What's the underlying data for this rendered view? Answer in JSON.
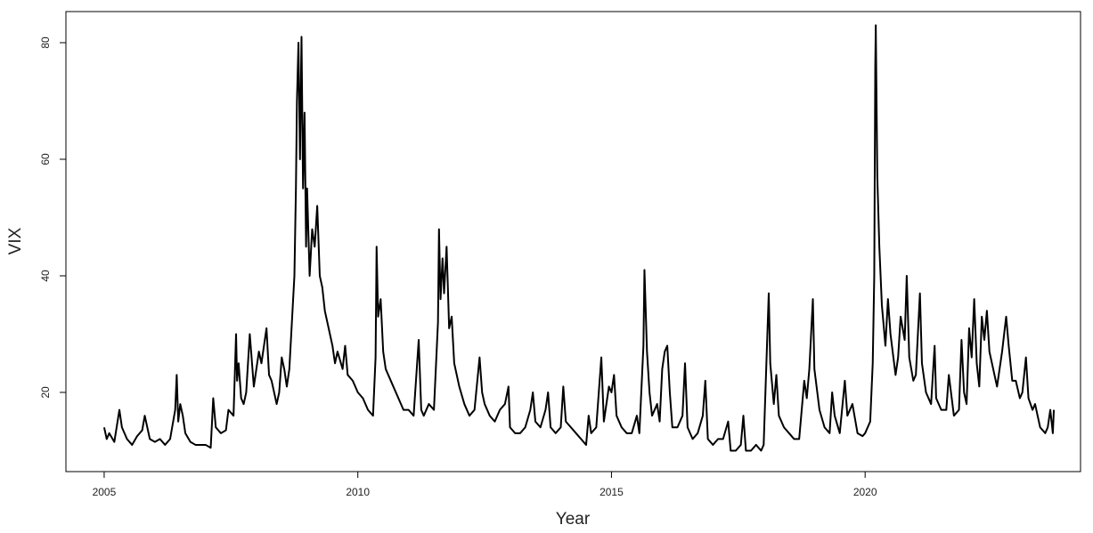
{
  "chart_data": {
    "type": "line",
    "x_label": "Year",
    "y_label": "VIX",
    "color": "#000000",
    "xlim": [
      2004.246,
      2024.246
    ],
    "xticks": [
      2005,
      2010,
      2015,
      2020
    ],
    "ylim": [
      6.41,
      85.34
    ],
    "yticks": [
      20,
      40,
      60,
      80
    ],
    "grid": false,
    "x": [
      2005.0,
      2005.05,
      2005.1,
      2005.2,
      2005.3,
      2005.35,
      2005.45,
      2005.55,
      2005.65,
      2005.75,
      2005.8,
      2005.9,
      2006.0,
      2006.1,
      2006.2,
      2006.3,
      2006.4,
      2006.43,
      2006.46,
      2006.5,
      2006.55,
      2006.6,
      2006.7,
      2006.8,
      2006.9,
      2007.0,
      2007.1,
      2007.15,
      2007.2,
      2007.3,
      2007.4,
      2007.45,
      2007.55,
      2007.6,
      2007.62,
      2007.65,
      2007.7,
      2007.75,
      2007.8,
      2007.87,
      2007.95,
      2008.0,
      2008.05,
      2008.1,
      2008.2,
      2008.25,
      2008.3,
      2008.4,
      2008.45,
      2008.5,
      2008.55,
      2008.6,
      2008.65,
      2008.7,
      2008.75,
      2008.78,
      2008.8,
      2008.83,
      2008.86,
      2008.89,
      2008.92,
      2008.95,
      2008.98,
      2009.0,
      2009.05,
      2009.1,
      2009.15,
      2009.2,
      2009.25,
      2009.3,
      2009.35,
      2009.4,
      2009.5,
      2009.55,
      2009.6,
      2009.7,
      2009.75,
      2009.8,
      2009.9,
      2010.0,
      2010.1,
      2010.2,
      2010.3,
      2010.35,
      2010.37,
      2010.4,
      2010.45,
      2010.5,
      2010.55,
      2010.6,
      2010.7,
      2010.8,
      2010.9,
      2011.0,
      2011.1,
      2011.2,
      2011.25,
      2011.3,
      2011.4,
      2011.5,
      2011.58,
      2011.6,
      2011.63,
      2011.67,
      2011.7,
      2011.75,
      2011.8,
      2011.85,
      2011.9,
      2012.0,
      2012.1,
      2012.2,
      2012.3,
      2012.4,
      2012.45,
      2012.5,
      2012.6,
      2012.7,
      2012.8,
      2012.9,
      2012.97,
      2013.0,
      2013.1,
      2013.2,
      2013.3,
      2013.4,
      2013.45,
      2013.5,
      2013.6,
      2013.7,
      2013.75,
      2013.8,
      2013.9,
      2014.0,
      2014.05,
      2014.1,
      2014.2,
      2014.3,
      2014.4,
      2014.5,
      2014.55,
      2014.6,
      2014.7,
      2014.8,
      2014.85,
      2014.95,
      2015.0,
      2015.05,
      2015.1,
      2015.2,
      2015.3,
      2015.4,
      2015.5,
      2015.55,
      2015.63,
      2015.65,
      2015.7,
      2015.75,
      2015.8,
      2015.9,
      2015.95,
      2016.0,
      2016.05,
      2016.1,
      2016.15,
      2016.2,
      2016.3,
      2016.4,
      2016.45,
      2016.5,
      2016.6,
      2016.7,
      2016.8,
      2016.85,
      2016.9,
      2017.0,
      2017.1,
      2017.2,
      2017.3,
      2017.35,
      2017.45,
      2017.55,
      2017.6,
      2017.65,
      2017.75,
      2017.85,
      2017.95,
      2018.0,
      2018.1,
      2018.13,
      2018.2,
      2018.25,
      2018.3,
      2018.4,
      2018.5,
      2018.6,
      2018.7,
      2018.8,
      2018.85,
      2018.9,
      2018.97,
      2019.0,
      2019.1,
      2019.2,
      2019.3,
      2019.35,
      2019.4,
      2019.5,
      2019.6,
      2019.65,
      2019.75,
      2019.85,
      2019.95,
      2020.0,
      2020.1,
      2020.15,
      2020.18,
      2020.2,
      2020.21,
      2020.24,
      2020.28,
      2020.33,
      2020.4,
      2020.45,
      2020.5,
      2020.6,
      2020.65,
      2020.7,
      2020.78,
      2020.82,
      2020.87,
      2020.95,
      2021.0,
      2021.08,
      2021.12,
      2021.2,
      2021.3,
      2021.37,
      2021.4,
      2021.5,
      2021.6,
      2021.65,
      2021.75,
      2021.85,
      2021.9,
      2021.95,
      2022.0,
      2022.05,
      2022.1,
      2022.15,
      2022.2,
      2022.25,
      2022.3,
      2022.35,
      2022.4,
      2022.45,
      2022.5,
      2022.6,
      2022.7,
      2022.78,
      2022.83,
      2022.9,
      2022.97,
      2023.05,
      2023.1,
      2023.17,
      2023.22,
      2023.3,
      2023.35,
      2023.45,
      2023.55,
      2023.6,
      2023.65,
      2023.7,
      2023.72
    ],
    "values": [
      14,
      12,
      13,
      11.5,
      17,
      14,
      12,
      11,
      12.5,
      13.5,
      16,
      12,
      11.5,
      12,
      11,
      12,
      17,
      23,
      15,
      18,
      16,
      13,
      11.5,
      11,
      11,
      11,
      10.5,
      19,
      14,
      13,
      13.5,
      17,
      16,
      30,
      22,
      25,
      19,
      18,
      20,
      30,
      21,
      24,
      27,
      25,
      31,
      23,
      22,
      18,
      20,
      26,
      24,
      21,
      24,
      32,
      40,
      55,
      70,
      80,
      60,
      81,
      55,
      68,
      45,
      55,
      40,
      48,
      45,
      52,
      40,
      38,
      34,
      32,
      28,
      25,
      27,
      24,
      28,
      23,
      22,
      20,
      19,
      17,
      16,
      26,
      45,
      33,
      36,
      27,
      24,
      23,
      21,
      19,
      17,
      17,
      16,
      29,
      17,
      16,
      18,
      17,
      32,
      48,
      36,
      43,
      37,
      45,
      31,
      33,
      25,
      21,
      18,
      16,
      17,
      26,
      20,
      18,
      16,
      15,
      17,
      18,
      21,
      14,
      13,
      13,
      14,
      17,
      20,
      15,
      14,
      17,
      20,
      14,
      13,
      14,
      21,
      15,
      14,
      13,
      12,
      11,
      16,
      13,
      14,
      26,
      15,
      21,
      20,
      23,
      16,
      14,
      13,
      13,
      16,
      13,
      28,
      41,
      27,
      20,
      16,
      18,
      15,
      24,
      27,
      28,
      20,
      14,
      14,
      16,
      25,
      14,
      12,
      13,
      16,
      22,
      12,
      11,
      12,
      12,
      15,
      10,
      10,
      11,
      16,
      10,
      10,
      11,
      10,
      11,
      37,
      25,
      18,
      23,
      16,
      14,
      13,
      12,
      12,
      22,
      19,
      24,
      36,
      24,
      17,
      14,
      13,
      20,
      16,
      13,
      22,
      16,
      18,
      13,
      12.5,
      13,
      15,
      25,
      40,
      76,
      83,
      57,
      45,
      35,
      28,
      36,
      30,
      23,
      26,
      33,
      29,
      40,
      26,
      22,
      23,
      37,
      25,
      20,
      18,
      28,
      19,
      17,
      17,
      23,
      16,
      17,
      29,
      20,
      18,
      31,
      26,
      36,
      25,
      21,
      33,
      29,
      34,
      27,
      25,
      21,
      27,
      33,
      28,
      22,
      22,
      19,
      20,
      26,
      19,
      17,
      18,
      14,
      13,
      14,
      17,
      13,
      17
    ]
  }
}
